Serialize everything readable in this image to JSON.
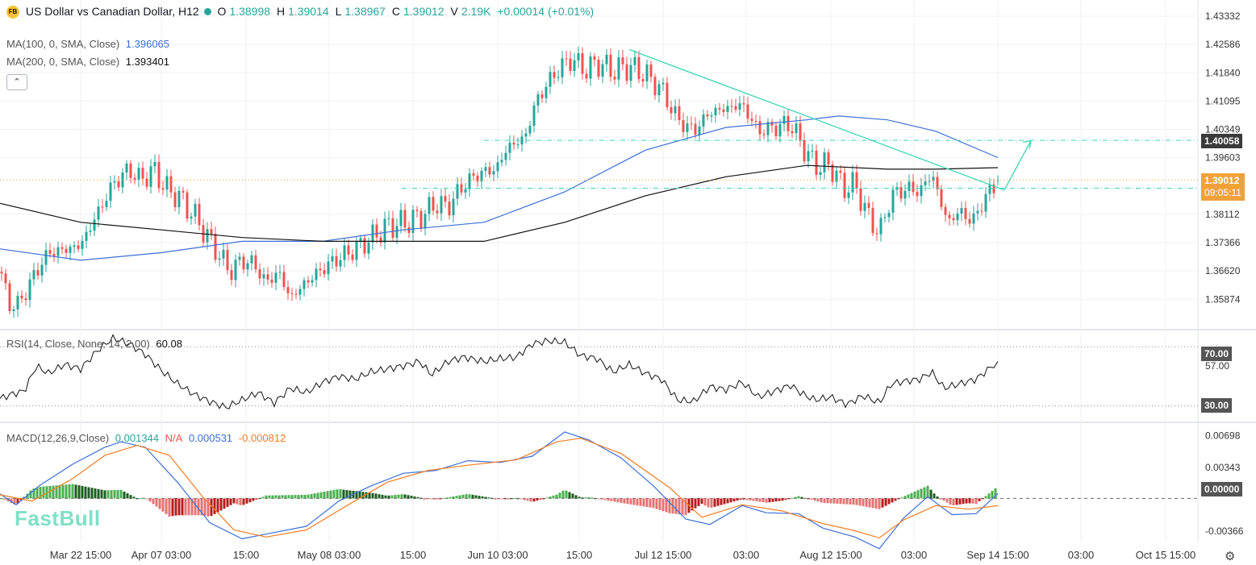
{
  "legend": {
    "logo": "FB",
    "symbol": "US Dollar vs Canadian Dollar, H12",
    "open_label": "O",
    "open": "1.38998",
    "high_label": "H",
    "high": "1.39014",
    "low_label": "L",
    "low": "1.38967",
    "close_label": "C",
    "close": "1.39012",
    "volume_label": "V",
    "volume": "2.19K",
    "change": "+0.00014 (+0.01%)",
    "ma100_label": "MA(100, 0, SMA, Close)",
    "ma100_value": "1.396065",
    "ma200_label": "MA(200, 0, SMA, Close)",
    "ma200_value": "1.393401",
    "collapse": "⌃"
  },
  "rsi_legend": {
    "label": "RSI(14, Close, None, 14, 2.00)",
    "value": "60.08"
  },
  "macd_legend": {
    "label": "MACD(12,26,9,Close)",
    "v1": "0.001344",
    "v2": "N/A",
    "v3": "0.000531",
    "v4": "-0.000812"
  },
  "price_tags": {
    "level": "1.40058",
    "current": "1.39012",
    "countdown": "09:05:11",
    "rsi_70": "70.00",
    "rsi_30": "30.00",
    "macd_zero": "0.00000"
  },
  "brand": "FastBull",
  "settings_icon": "gear-icon",
  "colors": {
    "up": "#26a69a",
    "down": "#ef5350",
    "ma100": "#3a6fd8",
    "ma200": "#111111",
    "trend": "#3dd6b6",
    "macd_line": "#3a6fd8",
    "signal_line": "#f57c1f",
    "current_tag": "#f0a23a"
  },
  "chart_data": [
    {
      "type": "candlestick",
      "title": "US Dollar vs Canadian Dollar, H12",
      "x_ticks": [
        "Mar 22 15:00",
        "Apr 07 03:00",
        "15:00",
        "May 08 03:00",
        "15:00",
        "Jun 10 03:00",
        "15:00",
        "Jul 12 15:00",
        "03:00",
        "Aug 12 15:00",
        "03:00",
        "Sep 14 15:00",
        "03:00",
        "Oct 15 15:00"
      ],
      "y_ticks": [
        1.43332,
        1.42586,
        1.4184,
        1.41095,
        1.40349,
        1.39603,
        1.38112,
        1.37366,
        1.3662,
        1.35874
      ],
      "ylim": [
        1.352,
        1.4365
      ],
      "close_path": [
        [
          0,
          1.366
        ],
        [
          10,
          1.358
        ],
        [
          22,
          1.357
        ],
        [
          45,
          1.366
        ],
        [
          60,
          1.371
        ],
        [
          85,
          1.372
        ],
        [
          100,
          1.373
        ],
        [
          120,
          1.381
        ],
        [
          140,
          1.389
        ],
        [
          160,
          1.393
        ],
        [
          175,
          1.39
        ],
        [
          190,
          1.393
        ],
        [
          205,
          1.388
        ],
        [
          220,
          1.386
        ],
        [
          240,
          1.381
        ],
        [
          255,
          1.376
        ],
        [
          270,
          1.371
        ],
        [
          285,
          1.366
        ],
        [
          300,
          1.369
        ],
        [
          315,
          1.368
        ],
        [
          330,
          1.363
        ],
        [
          345,
          1.366
        ],
        [
          360,
          1.359
        ],
        [
          378,
          1.363
        ],
        [
          395,
          1.366
        ],
        [
          415,
          1.369
        ],
        [
          432,
          1.371
        ],
        [
          455,
          1.374
        ],
        [
          480,
          1.378
        ],
        [
          505,
          1.379
        ],
        [
          525,
          1.381
        ],
        [
          540,
          1.384
        ],
        [
          555,
          1.383
        ],
        [
          575,
          1.389
        ],
        [
          595,
          1.392
        ],
        [
          615,
          1.393
        ],
        [
          630,
          1.399
        ],
        [
          650,
          1.401
        ],
        [
          665,
          1.411
        ],
        [
          680,
          1.416
        ],
        [
          695,
          1.42
        ],
        [
          710,
          1.422
        ],
        [
          725,
          1.419
        ],
        [
          740,
          1.421
        ],
        [
          760,
          1.419
        ],
        [
          780,
          1.42
        ],
        [
          800,
          1.418
        ],
        [
          820,
          1.414
        ],
        [
          840,
          1.406
        ],
        [
          860,
          1.403
        ],
        [
          880,
          1.408
        ],
        [
          900,
          1.409
        ],
        [
          920,
          1.41
        ],
        [
          940,
          1.403
        ],
        [
          960,
          1.404
        ],
        [
          980,
          1.405
        ],
        [
          995,
          1.399
        ],
        [
          1010,
          1.394
        ],
        [
          1030,
          1.394
        ],
        [
          1045,
          1.388
        ],
        [
          1060,
          1.389
        ],
        [
          1075,
          1.381
        ],
        [
          1090,
          1.376
        ],
        [
          1105,
          1.386
        ],
        [
          1125,
          1.388
        ],
        [
          1140,
          1.387
        ],
        [
          1155,
          1.392
        ],
        [
          1165,
          1.385
        ],
        [
          1175,
          1.379
        ],
        [
          1190,
          1.382
        ],
        [
          1205,
          1.379
        ],
        [
          1220,
          1.385
        ],
        [
          1237,
          1.39012
        ]
      ],
      "ma100": [
        [
          0,
          1.372
        ],
        [
          100,
          1.369
        ],
        [
          200,
          1.371
        ],
        [
          300,
          1.374
        ],
        [
          400,
          1.374
        ],
        [
          500,
          1.377
        ],
        [
          600,
          1.379
        ],
        [
          700,
          1.387
        ],
        [
          800,
          1.398
        ],
        [
          900,
          1.404
        ],
        [
          1000,
          1.406
        ],
        [
          1040,
          1.407
        ],
        [
          1100,
          1.406
        ],
        [
          1160,
          1.403
        ],
        [
          1237,
          1.396065
        ]
      ],
      "ma200": [
        [
          0,
          1.384
        ],
        [
          100,
          1.379
        ],
        [
          200,
          1.377
        ],
        [
          300,
          1.375
        ],
        [
          400,
          1.374
        ],
        [
          500,
          1.374
        ],
        [
          600,
          1.374
        ],
        [
          700,
          1.379
        ],
        [
          800,
          1.386
        ],
        [
          900,
          1.391
        ],
        [
          1000,
          1.394
        ],
        [
          1100,
          1.393
        ],
        [
          1160,
          1.393
        ],
        [
          1237,
          1.393401
        ]
      ],
      "trendline": [
        [
          780,
          1.4245
        ],
        [
          1245,
          1.3875
        ]
      ],
      "projection": [
        [
          1245,
          1.3875
        ],
        [
          1278,
          1.4005
        ]
      ],
      "levels": [
        {
          "value": 1.40058,
          "label": "1.40058",
          "from_x": 600
        },
        {
          "value": 1.38799,
          "from_x": 498
        },
        {
          "value": 1.39012,
          "dotted": true
        }
      ]
    },
    {
      "type": "line",
      "name": "RSI(14, Close, None, 14, 2.00)",
      "ylim": [
        20,
        81
      ],
      "levels": [
        70,
        30
      ],
      "y_ticks": [
        57.0
      ],
      "values": [
        [
          0,
          35
        ],
        [
          15,
          38
        ],
        [
          30,
          40
        ],
        [
          45,
          57
        ],
        [
          60,
          52
        ],
        [
          80,
          58
        ],
        [
          100,
          55
        ],
        [
          120,
          67
        ],
        [
          140,
          76
        ],
        [
          160,
          72
        ],
        [
          180,
          65
        ],
        [
          200,
          54
        ],
        [
          220,
          45
        ],
        [
          240,
          38
        ],
        [
          260,
          33
        ],
        [
          280,
          29
        ],
        [
          300,
          34
        ],
        [
          320,
          39
        ],
        [
          340,
          32
        ],
        [
          360,
          42
        ],
        [
          380,
          39
        ],
        [
          400,
          46
        ],
        [
          420,
          50
        ],
        [
          440,
          48
        ],
        [
          460,
          53
        ],
        [
          480,
          55
        ],
        [
          500,
          57
        ],
        [
          520,
          60
        ],
        [
          535,
          51
        ],
        [
          555,
          60
        ],
        [
          575,
          63
        ],
        [
          600,
          60
        ],
        [
          620,
          62
        ],
        [
          640,
          63
        ],
        [
          660,
          72
        ],
        [
          680,
          74
        ],
        [
          700,
          73
        ],
        [
          720,
          64
        ],
        [
          740,
          62
        ],
        [
          760,
          53
        ],
        [
          780,
          58
        ],
        [
          800,
          52
        ],
        [
          820,
          48
        ],
        [
          840,
          34
        ],
        [
          860,
          33
        ],
        [
          880,
          43
        ],
        [
          900,
          41
        ],
        [
          920,
          46
        ],
        [
          940,
          36
        ],
        [
          960,
          40
        ],
        [
          980,
          44
        ],
        [
          995,
          38
        ],
        [
          1010,
          34
        ],
        [
          1030,
          36
        ],
        [
          1050,
          31
        ],
        [
          1070,
          37
        ],
        [
          1090,
          32
        ],
        [
          1105,
          45
        ],
        [
          1125,
          47
        ],
        [
          1140,
          48
        ],
        [
          1155,
          53
        ],
        [
          1170,
          42
        ],
        [
          1190,
          45
        ],
        [
          1210,
          48
        ],
        [
          1237,
          60.08
        ]
      ]
    },
    {
      "type": "macd",
      "name": "MACD(12,26,9,Close)",
      "ylim": [
        -0.0049,
        0.0082
      ],
      "y_ticks": [
        0.00698,
        0.00343,
        0.0,
        -0.00366
      ],
      "macd": [
        [
          0,
          0.0005
        ],
        [
          20,
          -0.0007
        ],
        [
          50,
          0.0015
        ],
        [
          90,
          0.0038
        ],
        [
          130,
          0.0057
        ],
        [
          150,
          0.0063
        ],
        [
          180,
          0.0057
        ],
        [
          220,
          0.0018
        ],
        [
          260,
          -0.0027
        ],
        [
          300,
          -0.0045
        ],
        [
          340,
          -0.0038
        ],
        [
          380,
          -0.0031
        ],
        [
          420,
          -0.0003
        ],
        [
          460,
          0.0014
        ],
        [
          500,
          0.0028
        ],
        [
          540,
          0.0031
        ],
        [
          580,
          0.0042
        ],
        [
          620,
          0.004
        ],
        [
          660,
          0.0047
        ],
        [
          700,
          0.0074
        ],
        [
          730,
          0.0065
        ],
        [
          770,
          0.0045
        ],
        [
          810,
          0.0014
        ],
        [
          850,
          -0.0023
        ],
        [
          880,
          -0.0029
        ],
        [
          920,
          -0.0008
        ],
        [
          950,
          -0.0016
        ],
        [
          990,
          -0.0017
        ],
        [
          1020,
          -0.0033
        ],
        [
          1060,
          -0.0043
        ],
        [
          1090,
          -0.0056
        ],
        [
          1120,
          -0.0022
        ],
        [
          1150,
          0.0002
        ],
        [
          1180,
          -0.0018
        ],
        [
          1210,
          -0.0017
        ],
        [
          1237,
          0.000531
        ]
      ],
      "signal": [
        [
          0,
          0.0004
        ],
        [
          40,
          -0.0003
        ],
        [
          90,
          0.0022
        ],
        [
          130,
          0.0048
        ],
        [
          170,
          0.0059
        ],
        [
          210,
          0.0048
        ],
        [
          250,
          0.0003
        ],
        [
          290,
          -0.0035
        ],
        [
          330,
          -0.0043
        ],
        [
          380,
          -0.0035
        ],
        [
          430,
          -0.0008
        ],
        [
          480,
          0.0018
        ],
        [
          530,
          0.0031
        ],
        [
          580,
          0.0037
        ],
        [
          640,
          0.0043
        ],
        [
          690,
          0.0063
        ],
        [
          720,
          0.0067
        ],
        [
          770,
          0.005
        ],
        [
          830,
          0.0012
        ],
        [
          870,
          -0.0021
        ],
        [
          920,
          -0.0007
        ],
        [
          970,
          -0.0014
        ],
        [
          1020,
          -0.0028
        ],
        [
          1060,
          -0.0036
        ],
        [
          1090,
          -0.0044
        ],
        [
          1120,
          -0.0024
        ],
        [
          1160,
          -0.0008
        ],
        [
          1200,
          -0.0012
        ],
        [
          1237,
          -0.000812
        ]
      ]
    }
  ]
}
